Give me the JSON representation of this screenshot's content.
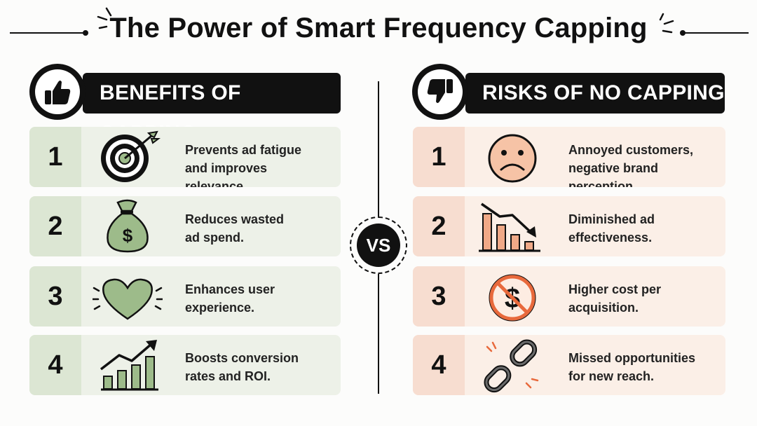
{
  "title": "The Power of Smart Frequency Capping",
  "benefits": {
    "header": "BENEFITS OF CAPPING",
    "header_icon": "thumbs-up-icon",
    "items": [
      {
        "num": "1",
        "line1": "Prevents ad fatigue",
        "line2": "and improves relevance.",
        "icon": "target-icon"
      },
      {
        "num": "2",
        "line1": "Reduces wasted",
        "line2": "ad spend.",
        "icon": "money-bag-icon"
      },
      {
        "num": "3",
        "line1": "Enhances user",
        "line2": "experience.",
        "icon": "heart-icon"
      },
      {
        "num": "4",
        "line1": "Boosts conversion",
        "line2": "rates and ROI.",
        "icon": "growth-chart-icon"
      }
    ]
  },
  "risks": {
    "header": "RISKS OF NO CAPPING",
    "header_icon": "thumbs-down-icon",
    "items": [
      {
        "num": "1",
        "line1": "Annoyed customers,",
        "line2": "negative brand perception.",
        "icon": "sad-face-icon"
      },
      {
        "num": "2",
        "line1": "Diminished ad",
        "line2": "effectiveness.",
        "icon": "declining-chart-icon"
      },
      {
        "num": "3",
        "line1": "Higher cost per",
        "line2": "acquisition.",
        "icon": "no-dollar-icon"
      },
      {
        "num": "4",
        "line1": "Missed opportunities",
        "line2": "for new reach.",
        "icon": "broken-link-icon"
      }
    ]
  },
  "vs_label": "VS",
  "colors": {
    "green_card": "#edf1e8",
    "green_num": "#dce6d3",
    "green_icon": "#9dbb8a",
    "red_card": "#fbefe7",
    "red_num": "#f7ddd0",
    "red_icon": "#f0a987",
    "dark": "#111111"
  }
}
